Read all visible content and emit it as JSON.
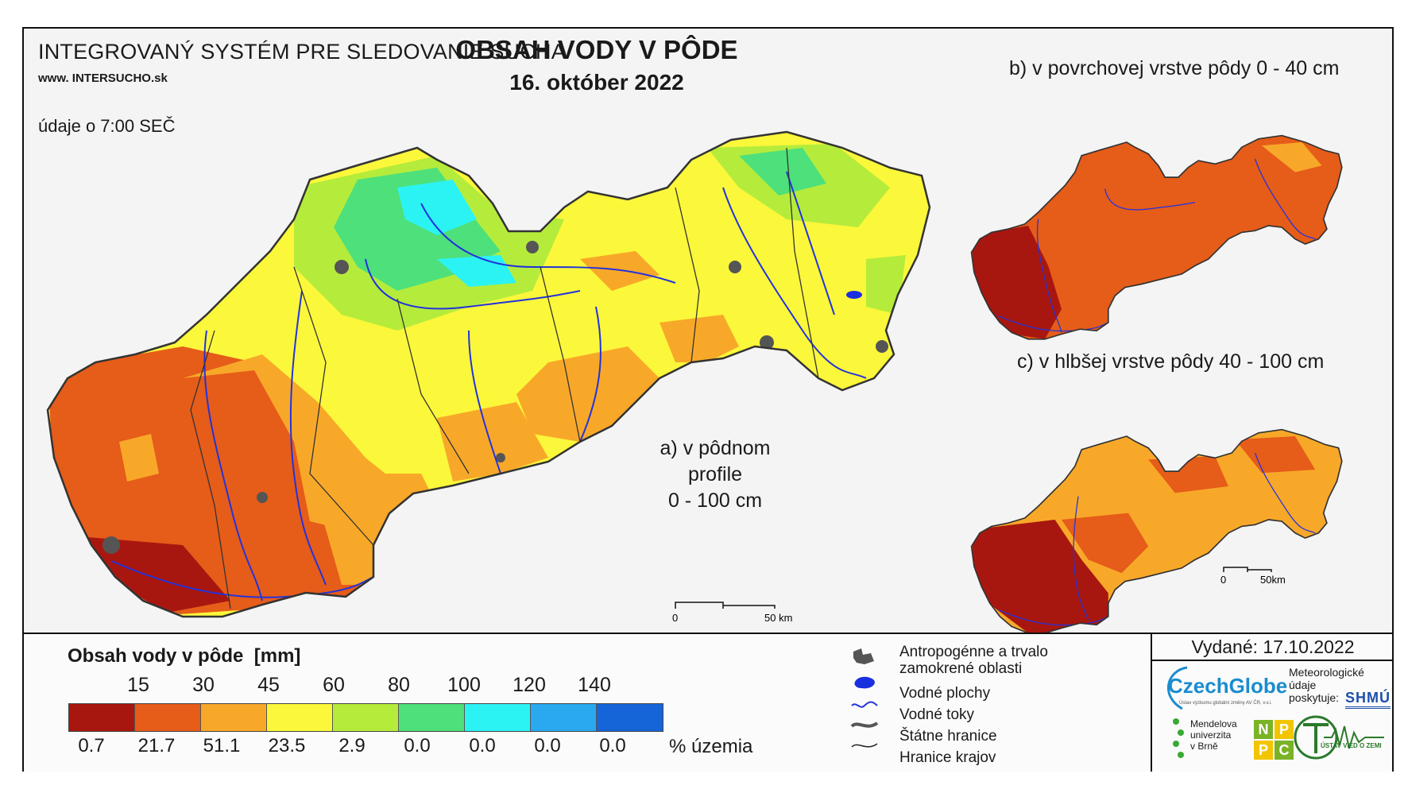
{
  "header": {
    "system_title": "INTEGROVANÝ SYSTÉM PRE SLEDOVANIE SUCHA",
    "url_prefix": "www. INTER",
    "url_mid": "SUCHO",
    "url_suffix": ".sk",
    "time_note": "údaje o 7:00 SEČ",
    "main_title": "OBSAH VODY V PÔDE",
    "main_date": "16. október 2022"
  },
  "maps": {
    "a_line1": "a) v pôdnom profile",
    "a_line2": "0 - 100 cm",
    "b_label": "b) v povrchovej vrstve pôdy 0 - 40 cm",
    "c_label": "c) v hlbšej vrstve pôdy 40 - 100 cm",
    "scale_main_0": "0",
    "scale_main_50": "50 km",
    "scale_small_0": "0",
    "scale_small_50": "50km"
  },
  "legend": {
    "title": "Obsah vody v pôde",
    "unit": "[mm]",
    "thresholds": [
      "15",
      "30",
      "45",
      "60",
      "80",
      "100",
      "120",
      "140"
    ],
    "classes": [
      {
        "color": "#a8170f",
        "pct": "0.7"
      },
      {
        "color": "#e65c19",
        "pct": "21.7"
      },
      {
        "color": "#f8a829",
        "pct": "51.1"
      },
      {
        "color": "#fbf73a",
        "pct": "23.5"
      },
      {
        "color": "#b5ec3b",
        "pct": "2.9"
      },
      {
        "color": "#4ee07a",
        "pct": "0.0"
      },
      {
        "color": "#2cf3f3",
        "pct": "0.0"
      },
      {
        "color": "#2aa8f0",
        "pct": "0.0"
      },
      {
        "color": "#1565d8",
        "pct": "0.0"
      }
    ],
    "pct_label": "% územia"
  },
  "key": {
    "items": [
      {
        "icon": "antropogenic-area-icon",
        "line1": "Antropogénne a trvalo",
        "line2": "zamokrené oblasti"
      },
      {
        "icon": "water-body-icon",
        "line1": "Vodné plochy",
        "line2": ""
      },
      {
        "icon": "water-stream-icon",
        "line1": "Vodné toky",
        "line2": ""
      },
      {
        "icon": "state-border-icon",
        "line1": "Štátne hranice",
        "line2": ""
      },
      {
        "icon": "region-border-icon",
        "line1": "Hranice krajov",
        "line2": ""
      }
    ]
  },
  "footer": {
    "issued": "Vydané: 17.10.2022",
    "czechglobe": "CzechGlobe",
    "czechglobe_sub": "Ústav výzkumu globální změny AV ČR, v.v.i.",
    "meteo_line1": "Meteorologické",
    "meteo_line2": "údaje",
    "meteo_line3": "poskytuje:",
    "shmu": "SHMÚ",
    "mendel_line1": "Mendelova",
    "mendel_line2": "univerzita",
    "mendel_line3": "v Brně",
    "npc": [
      "N",
      "P",
      "P",
      "C"
    ],
    "uvz": "ÚSTAV VIED O ZEMI"
  },
  "colors": {
    "frame": "#111111",
    "river": "#2233dd",
    "border": "#333333",
    "urban": "#555555"
  }
}
